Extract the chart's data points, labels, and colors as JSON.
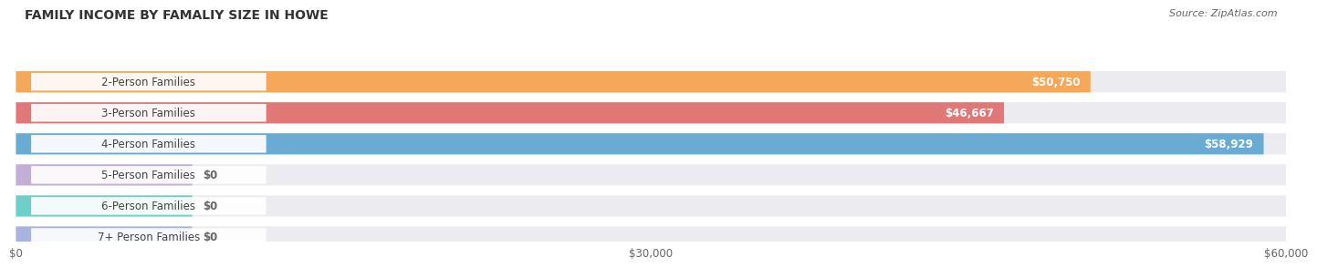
{
  "title": "FAMILY INCOME BY FAMALIY SIZE IN HOWE",
  "source": "Source: ZipAtlas.com",
  "categories": [
    "2-Person Families",
    "3-Person Families",
    "4-Person Families",
    "5-Person Families",
    "6-Person Families",
    "7+ Person Families"
  ],
  "values": [
    50750,
    46667,
    58929,
    0,
    0,
    0
  ],
  "bar_colors": [
    "#f5a85a",
    "#e07878",
    "#6aabd4",
    "#c4aed8",
    "#6ecfc8",
    "#a8b4e0"
  ],
  "value_labels": [
    "$50,750",
    "$46,667",
    "$58,929",
    "$0",
    "$0",
    "$0"
  ],
  "xlim_max": 60000,
  "xticks": [
    0,
    30000,
    60000
  ],
  "xtick_labels": [
    "$0",
    "$30,000",
    "$60,000"
  ],
  "bg_color": "#ffffff",
  "bar_track_color": "#ebebf0",
  "title_fontsize": 10,
  "source_fontsize": 8,
  "label_fontsize": 8.5,
  "value_fontsize": 8.5,
  "label_bg_color": "#ffffff",
  "label_text_color": "#444444",
  "value_text_color_inside": "#ffffff",
  "value_text_color_outside": "#666666"
}
